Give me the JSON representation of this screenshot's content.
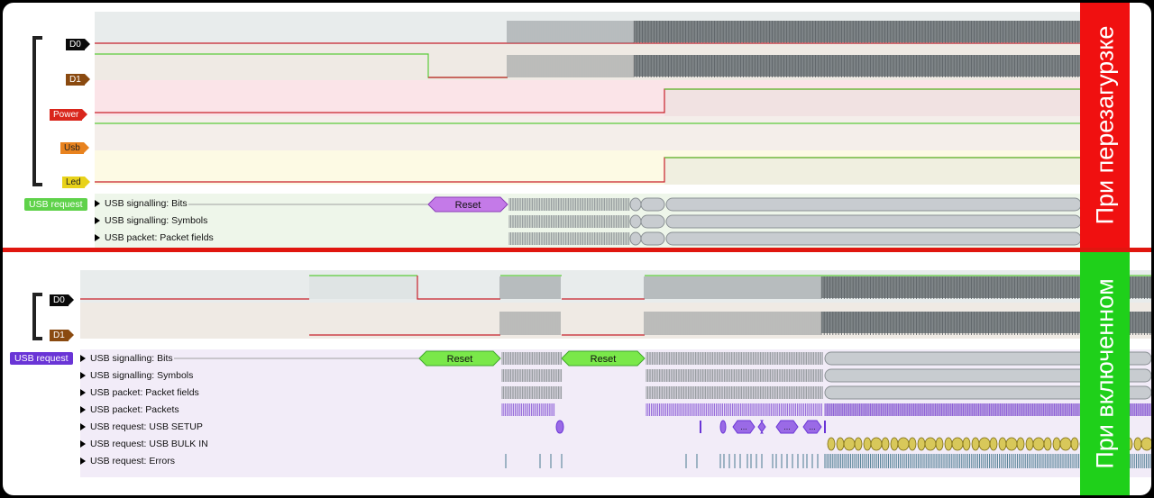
{
  "top_panel": {
    "channels": [
      {
        "label": "D0",
        "color": "#0a0a0a"
      },
      {
        "label": "D1",
        "color": "#8a4a10"
      },
      {
        "label": "Power",
        "color": "#d9261c"
      },
      {
        "label": "Usb",
        "color": "#e8821e"
      },
      {
        "label": "Led",
        "color": "#e8d21a"
      }
    ],
    "request_tag": {
      "label": "USB request",
      "color": "#5fd24a"
    },
    "analyzer_rows": [
      "USB signalling: Bits",
      "USB signalling: Symbols",
      "USB packet: Packet fields"
    ],
    "reset_label": "Reset",
    "side_label": "При перезагурзке",
    "side_color": "#f01010"
  },
  "bottom_panel": {
    "channels": [
      {
        "label": "D0",
        "color": "#0a0a0a"
      },
      {
        "label": "D1",
        "color": "#8a4a10"
      }
    ],
    "request_tag": {
      "label": "USB request",
      "color": "#6a35d6"
    },
    "analyzer_rows": [
      "USB signalling: Bits",
      "USB signalling: Symbols",
      "USB packet: Packet fields",
      "USB packet: Packets",
      "USB request: USB SETUP",
      "USB request: USB BULK IN",
      "USB request: Errors"
    ],
    "reset_labels": [
      "Reset",
      "Reset"
    ],
    "ellipsis": "...",
    "side_label": "При включенном",
    "side_color": "#1fd01a"
  }
}
